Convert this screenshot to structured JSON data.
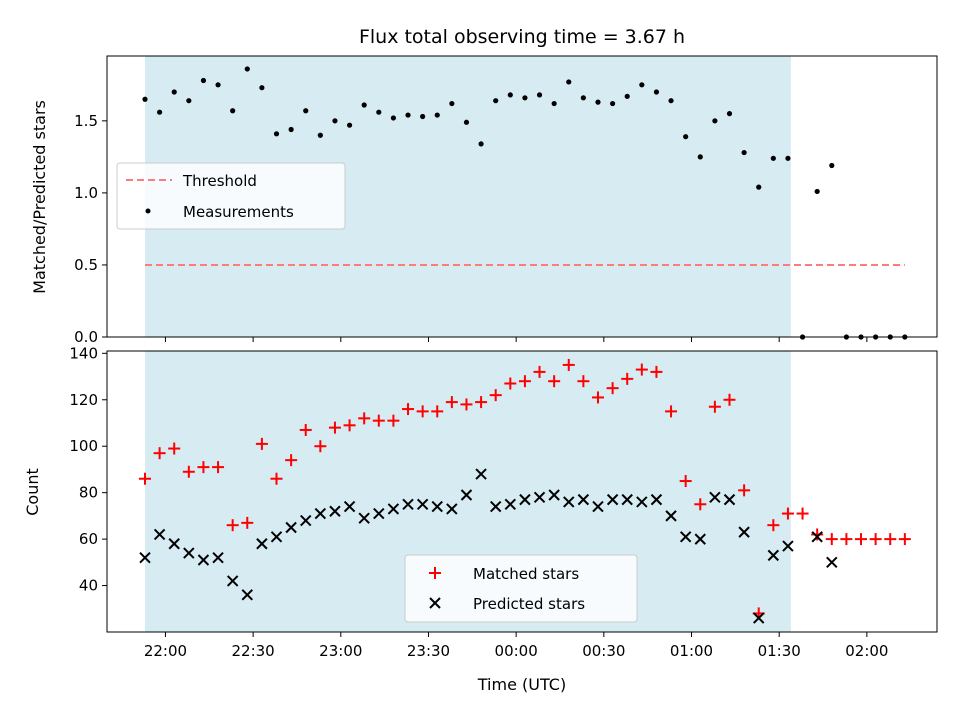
{
  "chart_data": {
    "type": "scatter",
    "title": "Flux total observing time = 3.67 h",
    "xlabel": "Time (UTC)",
    "x_ticks": [
      "22:00",
      "22:30",
      "23:00",
      "23:30",
      "00:00",
      "00:30",
      "01:00",
      "01:30",
      "02:00"
    ],
    "shaded_region": {
      "from": "21:53",
      "to": "01:34",
      "color": "#add8e6"
    },
    "top_panel": {
      "ylabel": "Matched/Predicted stars",
      "ylim": [
        0,
        1.95
      ],
      "y_ticks": [
        "0.0",
        "0.5",
        "1.0",
        "1.5"
      ],
      "legend": {
        "location": "center-left",
        "entries": [
          "Threshold",
          "Measurements"
        ]
      },
      "series": [
        {
          "name": "Threshold",
          "kind": "dashed-line",
          "color": "#ff7a7a",
          "points": [
            [
              "21:53",
              0.5
            ],
            [
              "02:13",
              0.5
            ]
          ]
        },
        {
          "name": "Measurements",
          "kind": "dot",
          "color": "#000000",
          "points": [
            [
              "21:53",
              1.65
            ],
            [
              "21:58",
              1.56
            ],
            [
              "22:03",
              1.7
            ],
            [
              "22:08",
              1.64
            ],
            [
              "22:13",
              1.78
            ],
            [
              "22:18",
              1.75
            ],
            [
              "22:23",
              1.57
            ],
            [
              "22:28",
              1.86
            ],
            [
              "22:33",
              1.73
            ],
            [
              "22:38",
              1.41
            ],
            [
              "22:43",
              1.44
            ],
            [
              "22:48",
              1.57
            ],
            [
              "22:53",
              1.4
            ],
            [
              "22:58",
              1.5
            ],
            [
              "23:03",
              1.47
            ],
            [
              "23:08",
              1.61
            ],
            [
              "23:13",
              1.56
            ],
            [
              "23:18",
              1.52
            ],
            [
              "23:23",
              1.54
            ],
            [
              "23:28",
              1.53
            ],
            [
              "23:33",
              1.54
            ],
            [
              "23:38",
              1.62
            ],
            [
              "23:43",
              1.49
            ],
            [
              "23:48",
              1.34
            ],
            [
              "23:53",
              1.64
            ],
            [
              "23:58",
              1.68
            ],
            [
              "00:03",
              1.66
            ],
            [
              "00:08",
              1.68
            ],
            [
              "00:13",
              1.62
            ],
            [
              "00:18",
              1.77
            ],
            [
              "00:23",
              1.66
            ],
            [
              "00:28",
              1.63
            ],
            [
              "00:33",
              1.62
            ],
            [
              "00:38",
              1.67
            ],
            [
              "00:43",
              1.75
            ],
            [
              "00:48",
              1.7
            ],
            [
              "00:53",
              1.64
            ],
            [
              "00:58",
              1.39
            ],
            [
              "01:03",
              1.25
            ],
            [
              "01:08",
              1.5
            ],
            [
              "01:13",
              1.55
            ],
            [
              "01:18",
              1.28
            ],
            [
              "01:23",
              1.04
            ],
            [
              "01:28",
              1.24
            ],
            [
              "01:33",
              1.24
            ],
            [
              "01:38",
              0.0
            ],
            [
              "01:43",
              1.01
            ],
            [
              "01:48",
              1.19
            ],
            [
              "01:53",
              0.0
            ],
            [
              "01:58",
              0.0
            ],
            [
              "02:03",
              0.0
            ],
            [
              "02:08",
              0.0
            ],
            [
              "02:13",
              0.0
            ]
          ]
        }
      ]
    },
    "bottom_panel": {
      "ylabel": "Count",
      "ylim": [
        20,
        141
      ],
      "y_ticks": [
        "40",
        "60",
        "80",
        "100",
        "120",
        "140"
      ],
      "legend": {
        "location": "bottom-center",
        "entries": [
          "Matched stars",
          "Predicted stars"
        ]
      },
      "series": [
        {
          "name": "Matched stars",
          "kind": "plus",
          "color": "#ff0000",
          "points": [
            [
              "21:53",
              86
            ],
            [
              "21:58",
              97
            ],
            [
              "22:03",
              99
            ],
            [
              "22:08",
              89
            ],
            [
              "22:13",
              91
            ],
            [
              "22:18",
              91
            ],
            [
              "22:23",
              66
            ],
            [
              "22:28",
              67
            ],
            [
              "22:33",
              101
            ],
            [
              "22:38",
              86
            ],
            [
              "22:43",
              94
            ],
            [
              "22:48",
              107
            ],
            [
              "22:53",
              100
            ],
            [
              "22:58",
              108
            ],
            [
              "23:03",
              109
            ],
            [
              "23:08",
              112
            ],
            [
              "23:13",
              111
            ],
            [
              "23:18",
              111
            ],
            [
              "23:23",
              116
            ],
            [
              "23:28",
              115
            ],
            [
              "23:33",
              115
            ],
            [
              "23:38",
              119
            ],
            [
              "23:43",
              118
            ],
            [
              "23:48",
              119
            ],
            [
              "23:53",
              122
            ],
            [
              "23:58",
              127
            ],
            [
              "00:03",
              128
            ],
            [
              "00:08",
              132
            ],
            [
              "00:13",
              128
            ],
            [
              "00:18",
              135
            ],
            [
              "00:23",
              128
            ],
            [
              "00:28",
              121
            ],
            [
              "00:33",
              125
            ],
            [
              "00:38",
              129
            ],
            [
              "00:43",
              133
            ],
            [
              "00:48",
              132
            ],
            [
              "00:53",
              115
            ],
            [
              "00:58",
              85
            ],
            [
              "01:03",
              75
            ],
            [
              "01:08",
              117
            ],
            [
              "01:13",
              120
            ],
            [
              "01:18",
              81
            ],
            [
              "01:23",
              28
            ],
            [
              "01:28",
              66
            ],
            [
              "01:33",
              71
            ],
            [
              "01:38",
              71
            ],
            [
              "01:43",
              62
            ],
            [
              "01:48",
              60
            ],
            [
              "01:53",
              60
            ],
            [
              "01:58",
              60
            ],
            [
              "02:03",
              60
            ],
            [
              "02:08",
              60
            ],
            [
              "02:13",
              60
            ]
          ]
        },
        {
          "name": "Predicted stars",
          "kind": "x",
          "color": "#000000",
          "points": [
            [
              "21:53",
              52
            ],
            [
              "21:58",
              62
            ],
            [
              "22:03",
              58
            ],
            [
              "22:08",
              54
            ],
            [
              "22:13",
              51
            ],
            [
              "22:18",
              52
            ],
            [
              "22:23",
              42
            ],
            [
              "22:28",
              36
            ],
            [
              "22:33",
              58
            ],
            [
              "22:38",
              61
            ],
            [
              "22:43",
              65
            ],
            [
              "22:48",
              68
            ],
            [
              "22:53",
              71
            ],
            [
              "22:58",
              72
            ],
            [
              "23:03",
              74
            ],
            [
              "23:08",
              69
            ],
            [
              "23:13",
              71
            ],
            [
              "23:18",
              73
            ],
            [
              "23:23",
              75
            ],
            [
              "23:28",
              75
            ],
            [
              "23:33",
              74
            ],
            [
              "23:38",
              73
            ],
            [
              "23:43",
              79
            ],
            [
              "23:48",
              88
            ],
            [
              "23:53",
              74
            ],
            [
              "23:58",
              75
            ],
            [
              "00:03",
              77
            ],
            [
              "00:08",
              78
            ],
            [
              "00:13",
              79
            ],
            [
              "00:18",
              76
            ],
            [
              "00:23",
              77
            ],
            [
              "00:28",
              74
            ],
            [
              "00:33",
              77
            ],
            [
              "00:38",
              77
            ],
            [
              "00:43",
              76
            ],
            [
              "00:48",
              77
            ],
            [
              "00:53",
              70
            ],
            [
              "00:58",
              61
            ],
            [
              "01:03",
              60
            ],
            [
              "01:08",
              78
            ],
            [
              "01:13",
              77
            ],
            [
              "01:18",
              63
            ],
            [
              "01:23",
              26
            ],
            [
              "01:28",
              53
            ],
            [
              "01:33",
              57
            ],
            [
              "01:43",
              61
            ],
            [
              "01:48",
              50
            ]
          ]
        }
      ]
    }
  }
}
